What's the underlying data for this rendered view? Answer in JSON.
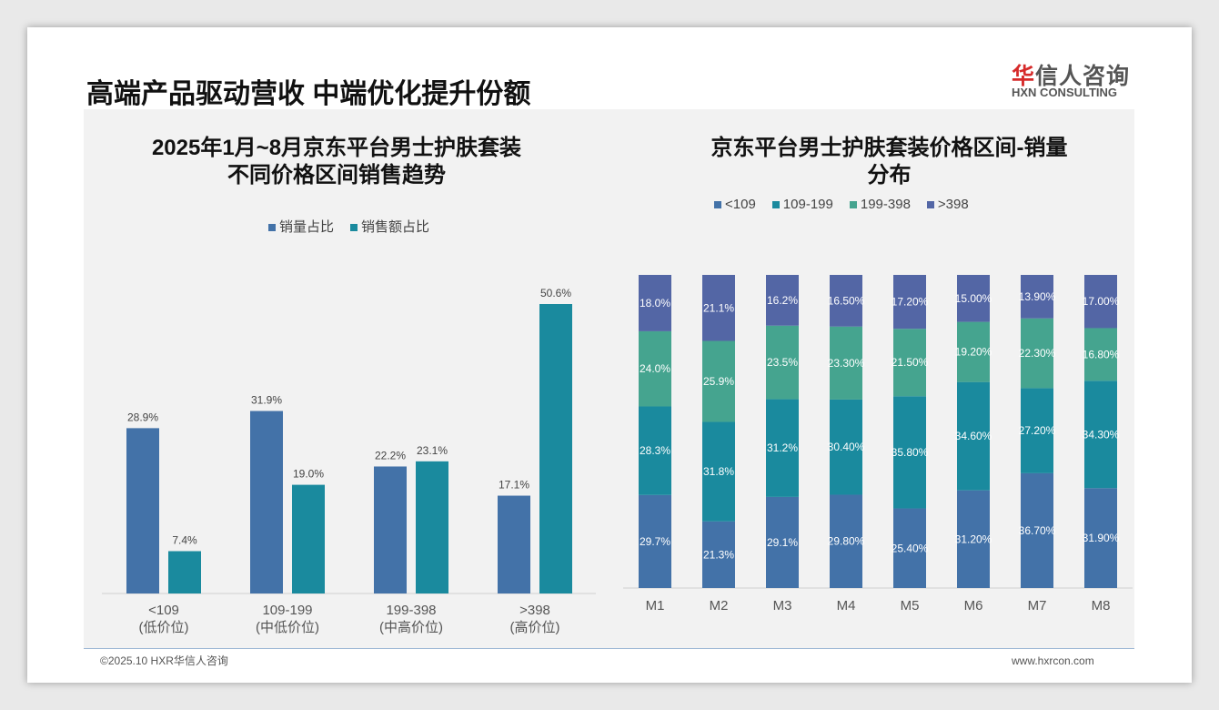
{
  "header": {
    "title": "高端产品驱动营收 中端优化提升份额",
    "logo_cn_red": "华",
    "logo_cn": "信人咨询",
    "logo_en": "HXN CONSULTING"
  },
  "footer": {
    "copyright": "©2025.10 HXR华信人咨询",
    "website": "www.hxrcon.com"
  },
  "colors": {
    "blue": "#4372a8",
    "teal": "#1a8a9e",
    "green": "#45a48f",
    "purple": "#5366a5"
  },
  "chart_data": [
    {
      "type": "bar",
      "title_line1": "2025年1月~8月京东平台男士护肤套装",
      "title_line2": "不同价格区间销售趋势",
      "categories": [
        "<109",
        "109-199",
        "199-398",
        ">398"
      ],
      "category_sub": [
        "(低价位)",
        "(中低价位)",
        "(中高价位)",
        "(高价位)"
      ],
      "series": [
        {
          "name": "销量占比",
          "values": [
            28.9,
            31.9,
            22.2,
            17.1
          ],
          "labels": [
            "28.9%",
            "31.9%",
            "22.2%",
            "17.1%"
          ]
        },
        {
          "name": "销售额占比",
          "values": [
            7.4,
            19.0,
            23.1,
            50.6
          ],
          "labels": [
            "7.4%",
            "19.0%",
            "23.1%",
            "50.6%"
          ]
        }
      ],
      "ylim": [
        0,
        55
      ]
    },
    {
      "type": "bar",
      "stacked": true,
      "title_line1": "京东平台男士护肤套装价格区间-销量",
      "title_line2": "分布",
      "categories": [
        "M1",
        "M2",
        "M3",
        "M4",
        "M5",
        "M6",
        "M7",
        "M8"
      ],
      "series": [
        {
          "name": "<109",
          "values": [
            29.7,
            21.3,
            29.1,
            29.8,
            25.4,
            31.2,
            36.7,
            31.9
          ],
          "labels": [
            "29.7%",
            "21.3%",
            "29.1%",
            "29.80%",
            "25.40%",
            "31.20%",
            "36.70%",
            "31.90%"
          ]
        },
        {
          "name": "109-199",
          "values": [
            28.3,
            31.8,
            31.2,
            30.4,
            35.8,
            34.6,
            27.2,
            34.3
          ],
          "labels": [
            "28.3%",
            "31.8%",
            "31.2%",
            "30.40%",
            "35.80%",
            "34.60%",
            "27.20%",
            "34.30%"
          ]
        },
        {
          "name": "199-398",
          "values": [
            24.0,
            25.9,
            23.5,
            23.3,
            21.5,
            19.2,
            22.3,
            16.8
          ],
          "labels": [
            "24.0%",
            "25.9%",
            "23.5%",
            "23.30%",
            "21.50%",
            "19.20%",
            "22.30%",
            "16.80%"
          ]
        },
        {
          "name": ">398",
          "values": [
            18.0,
            21.1,
            16.2,
            16.5,
            17.2,
            15.0,
            13.9,
            17.0
          ],
          "labels": [
            "18.0%",
            "21.1%",
            "16.2%",
            "16.50%",
            "17.20%",
            "15.00%",
            "13.90%",
            "17.00%"
          ]
        }
      ],
      "ylim": [
        0,
        100
      ]
    }
  ]
}
